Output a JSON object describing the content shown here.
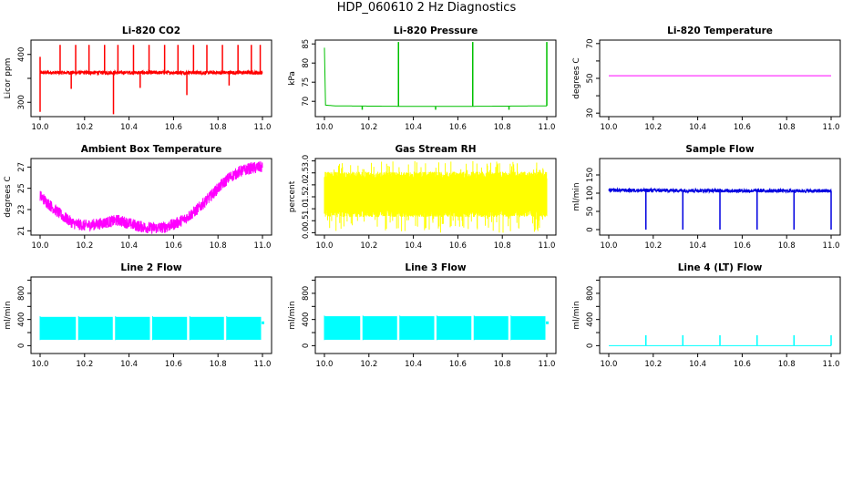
{
  "title": "HDP_060610  2 Hz Diagnostics",
  "chart_data": [
    {
      "type": "line",
      "title": "Li-820 CO2",
      "xlabel": "",
      "ylabel": "Licor ppm",
      "color": "#ff0000",
      "xlim": [
        10.0,
        11.0
      ],
      "ylim": [
        270,
        430
      ],
      "xticks": [
        "10.0",
        "10.2",
        "10.4",
        "10.6",
        "10.8",
        "11.0"
      ],
      "yticks": [
        300,
        350,
        400
      ],
      "ytick_labels": [
        "300",
        "",
        "400"
      ],
      "series": [
        {
          "kind": "band",
          "base": [
            [
              10.0,
              362
            ],
            [
              1.0,
              362
            ]
          ],
          "band_width": 4,
          "spikes_up": [
            [
              10.0,
              395
            ],
            [
              10.09,
              420
            ],
            [
              10.16,
              420
            ],
            [
              10.22,
              420
            ],
            [
              10.29,
              420
            ],
            [
              10.35,
              420
            ],
            [
              10.42,
              420
            ],
            [
              10.49,
              420
            ],
            [
              10.56,
              420
            ],
            [
              10.62,
              420
            ],
            [
              10.69,
              420
            ],
            [
              10.75,
              420
            ],
            [
              10.82,
              420
            ],
            [
              10.89,
              420
            ],
            [
              10.95,
              420
            ],
            [
              10.99,
              420
            ]
          ],
          "spikes_down": [
            [
              10.0,
              280
            ],
            [
              10.14,
              328
            ],
            [
              10.33,
              275
            ],
            [
              10.45,
              330
            ],
            [
              10.66,
              315
            ],
            [
              10.85,
              335
            ]
          ]
        }
      ]
    },
    {
      "type": "line",
      "title": "Li-820 Pressure",
      "xlabel": "",
      "ylabel": "kPa",
      "color": "#00c000",
      "xlim": [
        10.0,
        11.0
      ],
      "ylim": [
        66,
        86
      ],
      "xticks": [
        "10.0",
        "10.2",
        "10.4",
        "10.6",
        "10.8",
        "11.0"
      ],
      "yticks": [
        70,
        75,
        80,
        85
      ],
      "ytick_labels": [
        "70",
        "75",
        "80",
        "85"
      ],
      "series": [
        {
          "kind": "line",
          "base": [
            [
              10.0,
              84
            ],
            [
              10.005,
              69
            ],
            [
              10.05,
              68.8
            ],
            [
              10.33,
              68.7
            ],
            [
              10.67,
              68.7
            ],
            [
              11.0,
              68.8
            ]
          ],
          "spikes_up": [
            [
              10.333,
              85.5
            ],
            [
              10.667,
              85.5
            ],
            [
              11.0,
              85.5
            ]
          ],
          "spikes_down": [
            [
              10.17,
              67.8
            ],
            [
              10.5,
              67.8
            ],
            [
              10.83,
              67.8
            ]
          ]
        }
      ]
    },
    {
      "type": "line",
      "title": "Li-820 Temperature",
      "xlabel": "",
      "ylabel": "degrees C",
      "color": "#ff00ff",
      "xlim": [
        10.0,
        11.0
      ],
      "ylim": [
        28,
        72
      ],
      "xticks": [
        "10.0",
        "10.2",
        "10.4",
        "10.6",
        "10.8",
        "11.0"
      ],
      "yticks": [
        30,
        40,
        50,
        60,
        70
      ],
      "ytick_labels": [
        "30",
        "",
        "50",
        "",
        "70"
      ],
      "series": [
        {
          "kind": "line",
          "base": [
            [
              10.0,
              51.5
            ],
            [
              11.0,
              51.5
            ]
          ]
        }
      ]
    },
    {
      "type": "area",
      "title": "Ambient Box Temperature",
      "xlabel": "",
      "ylabel": "degrees C",
      "color": "#ff00ff",
      "xlim": [
        10.0,
        11.0
      ],
      "ylim": [
        20.6,
        27.8
      ],
      "xticks": [
        "10.0",
        "10.2",
        "10.4",
        "10.6",
        "10.8",
        "11.0"
      ],
      "yticks": [
        21,
        23,
        25,
        27
      ],
      "ytick_labels": [
        "21",
        "23",
        "25",
        "27"
      ],
      "series": [
        {
          "kind": "band",
          "band_width": 0.55,
          "base": [
            [
              10.0,
              24.3
            ],
            [
              10.05,
              23.3
            ],
            [
              10.1,
              22.4
            ],
            [
              10.15,
              21.7
            ],
            [
              10.2,
              21.5
            ],
            [
              10.25,
              21.6
            ],
            [
              10.3,
              21.8
            ],
            [
              10.35,
              22.0
            ],
            [
              10.4,
              21.7
            ],
            [
              10.45,
              21.4
            ],
            [
              10.5,
              21.25
            ],
            [
              10.55,
              21.3
            ],
            [
              10.6,
              21.6
            ],
            [
              10.65,
              22.1
            ],
            [
              10.7,
              22.9
            ],
            [
              10.75,
              23.9
            ],
            [
              10.8,
              25.0
            ],
            [
              10.85,
              26.0
            ],
            [
              10.9,
              26.6
            ],
            [
              10.95,
              26.9
            ],
            [
              11.0,
              27.0
            ]
          ]
        }
      ]
    },
    {
      "type": "area",
      "title": "Gas Stream RH",
      "xlabel": "",
      "ylabel": "percent",
      "color": "#ffff00",
      "xlim": [
        10.0,
        11.0
      ],
      "ylim": [
        -0.1,
        3.1
      ],
      "xticks": [
        "10.0",
        "10.2",
        "10.4",
        "10.6",
        "10.8",
        "11.0"
      ],
      "yticks": [
        0.0,
        0.5,
        1.0,
        1.5,
        2.0,
        2.5,
        3.0
      ],
      "ytick_labels": [
        "0.0",
        "0.5",
        "1.0",
        "1.5",
        "2.0",
        "2.5",
        "3.0"
      ],
      "series": [
        {
          "kind": "noise",
          "center": 1.6,
          "low": 0.8,
          "high": 2.4,
          "min": 0.0,
          "max": 3.0
        }
      ]
    },
    {
      "type": "line",
      "title": "Sample Flow",
      "xlabel": "",
      "ylabel": "ml/min",
      "color": "#0000e0",
      "xlim": [
        10.0,
        11.0
      ],
      "ylim": [
        -15,
        195
      ],
      "xticks": [
        "10.0",
        "10.2",
        "10.4",
        "10.6",
        "10.8",
        "11.0"
      ],
      "yticks": [
        0,
        50,
        100,
        150
      ],
      "ytick_labels": [
        "0",
        "50",
        "100",
        "150"
      ],
      "series": [
        {
          "kind": "band",
          "band_width": 5,
          "base": [
            [
              10.0,
              108
            ],
            [
              11.0,
              106
            ]
          ],
          "spikes_down": [
            [
              10.167,
              0
            ],
            [
              10.333,
              0
            ],
            [
              10.5,
              0
            ],
            [
              10.667,
              0
            ],
            [
              10.833,
              0
            ],
            [
              11.0,
              0
            ]
          ]
        }
      ]
    },
    {
      "type": "area",
      "title": "Line 2 Flow",
      "xlabel": "",
      "ylabel": "ml/min",
      "color": "#00ffff",
      "xlim": [
        10.0,
        11.0
      ],
      "ylim": [
        -120,
        1050
      ],
      "xticks": [
        "10.0",
        "10.2",
        "10.4",
        "10.6",
        "10.8",
        "11.0"
      ],
      "yticks": [
        0,
        200,
        400,
        600,
        800,
        1000
      ],
      "ytick_labels": [
        "0",
        "",
        "400",
        "",
        "800",
        ""
      ],
      "series": [
        {
          "kind": "block",
          "low": 90,
          "high": 440,
          "gaps": [
            10.167,
            10.333,
            10.5,
            10.667,
            10.833
          ]
        }
      ]
    },
    {
      "type": "area",
      "title": "Line 3 Flow",
      "xlabel": "",
      "ylabel": "ml/min",
      "color": "#00ffff",
      "xlim": [
        10.0,
        11.0
      ],
      "ylim": [
        -120,
        1050
      ],
      "xticks": [
        "10.0",
        "10.2",
        "10.4",
        "10.6",
        "10.8",
        "11.0"
      ],
      "yticks": [
        0,
        200,
        400,
        600,
        800,
        1000
      ],
      "ytick_labels": [
        "0",
        "",
        "400",
        "",
        "800",
        ""
      ],
      "series": [
        {
          "kind": "block",
          "low": 90,
          "high": 450,
          "gaps": [
            10.167,
            10.333,
            10.5,
            10.667,
            10.833
          ]
        }
      ]
    },
    {
      "type": "line",
      "title": "Line 4 (LT) Flow",
      "xlabel": "",
      "ylabel": "ml/min",
      "color": "#00ffff",
      "xlim": [
        10.0,
        11.0
      ],
      "ylim": [
        -120,
        1050
      ],
      "xticks": [
        "10.0",
        "10.2",
        "10.4",
        "10.6",
        "10.8",
        "11.0"
      ],
      "yticks": [
        0,
        200,
        400,
        600,
        800,
        1000
      ],
      "ytick_labels": [
        "0",
        "",
        "400",
        "",
        "800",
        ""
      ],
      "series": [
        {
          "kind": "line",
          "base": [
            [
              10.0,
              0
            ],
            [
              11.0,
              0
            ]
          ],
          "spikes_up": [
            [
              10.167,
              160
            ],
            [
              10.333,
              160
            ],
            [
              10.5,
              160
            ],
            [
              10.667,
              160
            ],
            [
              10.833,
              160
            ],
            [
              11.0,
              160
            ]
          ]
        }
      ]
    }
  ]
}
